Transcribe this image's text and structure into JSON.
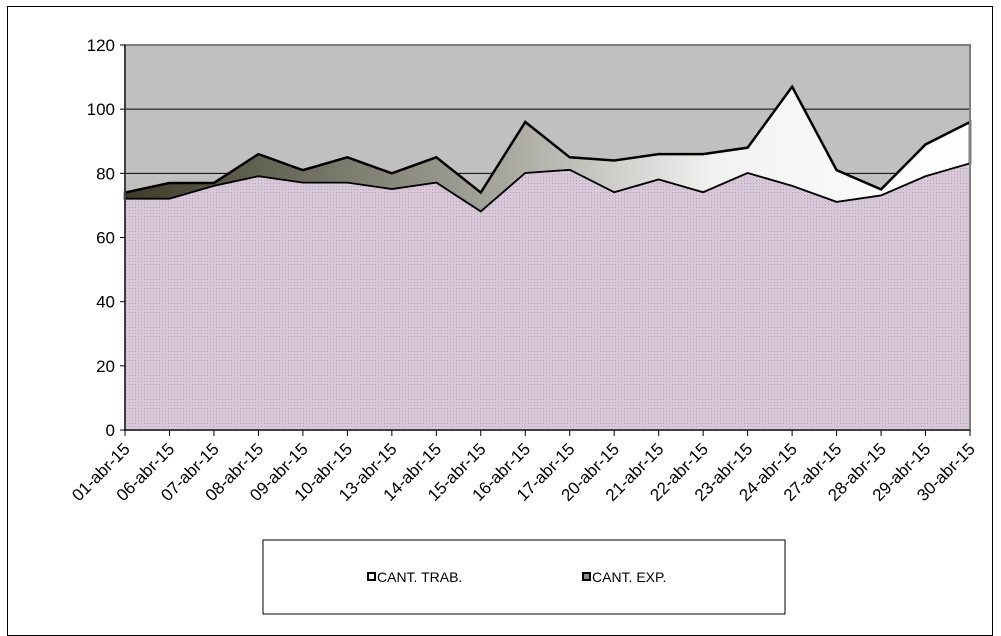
{
  "chart_data": {
    "type": "area",
    "stacked": true,
    "categories": [
      "01-abr-15",
      "06-abr-15",
      "07-abr-15",
      "08-abr-15",
      "09-abr-15",
      "10-abr-15",
      "13-abr-15",
      "14-abr-15",
      "15-abr-15",
      "16-abr-15",
      "17-abr-15",
      "20-abr-15",
      "21-abr-15",
      "22-abr-15",
      "23-abr-15",
      "24-abr-15",
      "27-abr-15",
      "28-abr-15",
      "29-abr-15",
      "30-abr-15"
    ],
    "series": [
      {
        "name": "CANT. TRAB.",
        "values": [
          72,
          72,
          76,
          79,
          77,
          77,
          75,
          77,
          68,
          80,
          81,
          74,
          78,
          74,
          80,
          76,
          71,
          73,
          79,
          83
        ],
        "color": "#d9c8d9"
      },
      {
        "name": "CANT. EXP.",
        "values": [
          2,
          5,
          1,
          7,
          4,
          8,
          5,
          8,
          6,
          16,
          4,
          10,
          8,
          12,
          8,
          31,
          10,
          2,
          10,
          13
        ]
      }
    ],
    "yticks": [
      "0",
      "20",
      "40",
      "60",
      "80",
      "100",
      "120"
    ],
    "ylim": [
      0,
      120
    ],
    "grid": true,
    "legend_position": "bottom",
    "plot_background": "#c0c0c0"
  }
}
